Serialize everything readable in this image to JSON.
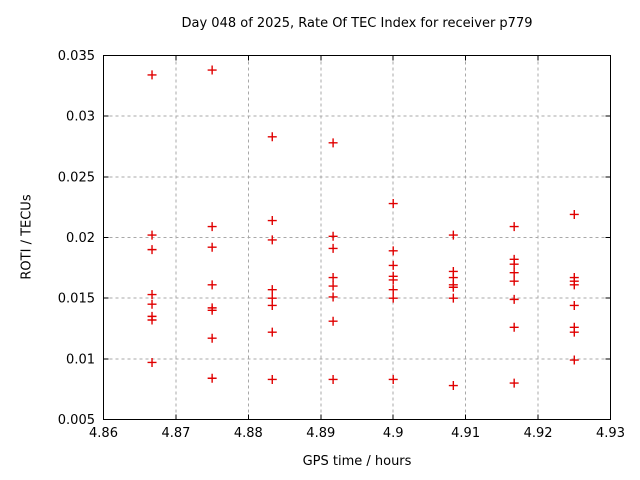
{
  "window": {
    "background": "#ffffff"
  },
  "chart_data": {
    "type": "scatter",
    "title": "Day 048 of 2025, Rate Of TEC Index for receiver p779",
    "xlabel": "GPS time / hours",
    "ylabel": "ROTI / TECUs",
    "xlim": [
      4.86,
      4.93
    ],
    "ylim": [
      0.005,
      0.035
    ],
    "xticks": [
      4.86,
      4.87,
      4.88,
      4.89,
      4.9,
      4.91,
      4.92,
      4.93
    ],
    "xtick_labels": [
      "4.86",
      "4.87",
      "4.88",
      "4.89",
      "4.9",
      "4.91",
      "4.92",
      "4.93"
    ],
    "yticks": [
      0.005,
      0.01,
      0.015,
      0.02,
      0.025,
      0.03,
      0.035
    ],
    "ytick_labels": [
      "0.005",
      "0.01",
      "0.015",
      "0.02",
      "0.025",
      "0.03",
      "0.035"
    ],
    "grid": true,
    "grid_color": "#a8a8a8",
    "border_color": "#000000",
    "legend": "none",
    "marker": "plus",
    "marker_color": "#e00000",
    "series": [
      {
        "name": "ROTI",
        "points": [
          [
            4.8667,
            0.0334
          ],
          [
            4.8667,
            0.0202
          ],
          [
            4.8667,
            0.019
          ],
          [
            4.8667,
            0.0153
          ],
          [
            4.8667,
            0.0145
          ],
          [
            4.8667,
            0.0135
          ],
          [
            4.8667,
            0.0132
          ],
          [
            4.8667,
            0.0097
          ],
          [
            4.875,
            0.0338
          ],
          [
            4.875,
            0.0209
          ],
          [
            4.875,
            0.0192
          ],
          [
            4.875,
            0.0161
          ],
          [
            4.875,
            0.0142
          ],
          [
            4.875,
            0.014
          ],
          [
            4.875,
            0.0117
          ],
          [
            4.875,
            0.0084
          ],
          [
            4.8833,
            0.0283
          ],
          [
            4.8833,
            0.0214
          ],
          [
            4.8833,
            0.0198
          ],
          [
            4.8833,
            0.0157
          ],
          [
            4.8833,
            0.015
          ],
          [
            4.8833,
            0.0144
          ],
          [
            4.8833,
            0.0122
          ],
          [
            4.8833,
            0.0083
          ],
          [
            4.8917,
            0.0278
          ],
          [
            4.8917,
            0.0201
          ],
          [
            4.8917,
            0.0191
          ],
          [
            4.8917,
            0.0167
          ],
          [
            4.8917,
            0.016
          ],
          [
            4.8917,
            0.0151
          ],
          [
            4.8917,
            0.0131
          ],
          [
            4.8917,
            0.0083
          ],
          [
            4.9,
            0.0228
          ],
          [
            4.9,
            0.0189
          ],
          [
            4.9,
            0.0177
          ],
          [
            4.9,
            0.0168
          ],
          [
            4.9,
            0.0165
          ],
          [
            4.9,
            0.0157
          ],
          [
            4.9,
            0.015
          ],
          [
            4.9,
            0.0083
          ],
          [
            4.9083,
            0.0202
          ],
          [
            4.9083,
            0.0172
          ],
          [
            4.9083,
            0.0167
          ],
          [
            4.9083,
            0.0161
          ],
          [
            4.9083,
            0.0159
          ],
          [
            4.9083,
            0.015
          ],
          [
            4.9083,
            0.0078
          ],
          [
            4.9167,
            0.0209
          ],
          [
            4.9167,
            0.0182
          ],
          [
            4.9167,
            0.0178
          ],
          [
            4.9167,
            0.0171
          ],
          [
            4.9167,
            0.0164
          ],
          [
            4.9167,
            0.0149
          ],
          [
            4.9167,
            0.0126
          ],
          [
            4.9167,
            0.008
          ],
          [
            4.925,
            0.0219
          ],
          [
            4.925,
            0.0167
          ],
          [
            4.925,
            0.0164
          ],
          [
            4.925,
            0.0161
          ],
          [
            4.925,
            0.0144
          ],
          [
            4.925,
            0.0126
          ],
          [
            4.925,
            0.0122
          ],
          [
            4.925,
            0.0099
          ]
        ]
      }
    ]
  }
}
